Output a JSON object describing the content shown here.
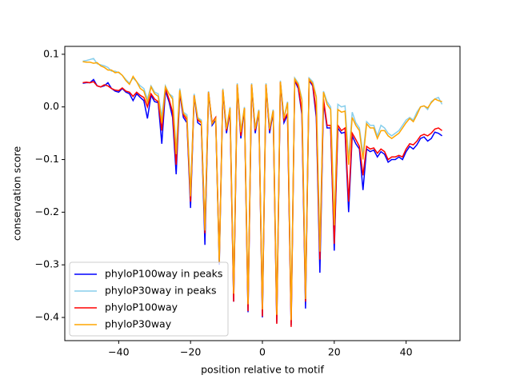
{
  "chart_data": {
    "type": "line",
    "xlabel": "position relative to motif",
    "ylabel": "conservation score",
    "x": [
      -50,
      -49,
      -48,
      -47,
      -46,
      -45,
      -44,
      -43,
      -42,
      -41,
      -40,
      -39,
      -38,
      -37,
      -36,
      -35,
      -34,
      -33,
      -32,
      -31,
      -30,
      -29,
      -28,
      -27,
      -26,
      -25,
      -24,
      -23,
      -22,
      -21,
      -20,
      -19,
      -18,
      -17,
      -16,
      -15,
      -14,
      -13,
      -12,
      -11,
      -10,
      -9,
      -8,
      -7,
      -6,
      -5,
      -4,
      -3,
      -2,
      -1,
      0,
      1,
      2,
      3,
      4,
      5,
      6,
      7,
      8,
      9,
      10,
      11,
      12,
      13,
      14,
      15,
      16,
      17,
      18,
      19,
      20,
      21,
      22,
      23,
      24,
      25,
      26,
      27,
      28,
      29,
      30,
      31,
      32,
      33,
      34,
      35,
      36,
      37,
      38,
      39,
      40,
      41,
      42,
      43,
      44,
      45,
      46,
      47,
      48,
      49,
      50
    ],
    "series": [
      {
        "name": "phyloP100way in peaks",
        "color": "#0000ff",
        "values": [
          0.045,
          0.046,
          0.046,
          0.052,
          0.04,
          0.038,
          0.04,
          0.046,
          0.035,
          0.03,
          0.028,
          0.035,
          0.028,
          0.025,
          0.012,
          0.025,
          0.018,
          0.012,
          -0.022,
          0.022,
          0.01,
          0.008,
          -0.07,
          0.03,
          0.01,
          -0.02,
          -0.128,
          0.025,
          -0.02,
          -0.03,
          -0.192,
          0.02,
          -0.03,
          -0.035,
          -0.262,
          0.025,
          -0.035,
          -0.025,
          -0.3,
          0.03,
          -0.05,
          -0.01,
          -0.37,
          0.04,
          -0.06,
          -0.005,
          -0.39,
          0.04,
          -0.05,
          -0.01,
          -0.4,
          0.04,
          -0.05,
          -0.01,
          -0.41,
          0.045,
          -0.03,
          -0.015,
          -0.415,
          0.05,
          0.035,
          -0.015,
          -0.383,
          0.05,
          0.04,
          -0.02,
          -0.315,
          0.01,
          -0.04,
          -0.04,
          -0.273,
          -0.04,
          -0.05,
          -0.048,
          -0.2,
          -0.055,
          -0.07,
          -0.08,
          -0.158,
          -0.08,
          -0.085,
          -0.082,
          -0.095,
          -0.085,
          -0.09,
          -0.105,
          -0.1,
          -0.1,
          -0.095,
          -0.1,
          -0.085,
          -0.075,
          -0.08,
          -0.072,
          -0.06,
          -0.057,
          -0.065,
          -0.06,
          -0.048,
          -0.05,
          -0.055
        ]
      },
      {
        "name": "phyloP30way in peaks",
        "color": "#87ceeb",
        "values": [
          0.087,
          0.088,
          0.09,
          0.092,
          0.082,
          0.08,
          0.078,
          0.075,
          0.068,
          0.068,
          0.065,
          0.06,
          0.052,
          0.045,
          0.055,
          0.048,
          0.04,
          0.035,
          0.015,
          0.04,
          0.028,
          0.025,
          -0.02,
          0.04,
          0.025,
          0.02,
          -0.08,
          0.035,
          -0.01,
          -0.015,
          -0.165,
          0.025,
          -0.02,
          -0.025,
          -0.23,
          0.03,
          -0.03,
          -0.02,
          -0.29,
          0.035,
          -0.04,
          0.0,
          -0.35,
          0.045,
          -0.045,
          0.0,
          -0.37,
          0.045,
          -0.04,
          -0.005,
          -0.38,
          0.045,
          -0.04,
          -0.005,
          -0.39,
          0.05,
          -0.02,
          0.01,
          -0.4,
          0.055,
          0.045,
          0.015,
          -0.36,
          0.055,
          0.048,
          0.02,
          -0.27,
          0.03,
          0.01,
          0.0,
          -0.22,
          0.005,
          0.0,
          0.002,
          -0.1,
          -0.01,
          -0.03,
          -0.04,
          -0.09,
          -0.028,
          -0.035,
          -0.035,
          -0.055,
          -0.035,
          -0.04,
          -0.05,
          -0.055,
          -0.05,
          -0.045,
          -0.035,
          -0.025,
          -0.02,
          -0.025,
          -0.01,
          0.0,
          0.002,
          -0.005,
          0.01,
          0.015,
          0.018,
          0.005
        ]
      },
      {
        "name": "phyloP100way",
        "color": "#ff0000",
        "values": [
          0.046,
          0.047,
          0.046,
          0.048,
          0.04,
          0.038,
          0.042,
          0.04,
          0.035,
          0.032,
          0.031,
          0.036,
          0.03,
          0.028,
          0.02,
          0.028,
          0.022,
          0.018,
          0.0,
          0.025,
          0.015,
          0.01,
          -0.045,
          0.035,
          0.015,
          -0.01,
          -0.11,
          0.028,
          -0.015,
          -0.025,
          -0.18,
          0.022,
          -0.025,
          -0.03,
          -0.24,
          0.028,
          -0.03,
          -0.02,
          -0.29,
          0.032,
          -0.045,
          -0.008,
          -0.37,
          0.042,
          -0.055,
          -0.003,
          -0.388,
          0.042,
          -0.045,
          -0.008,
          -0.398,
          0.042,
          -0.045,
          -0.008,
          -0.412,
          0.047,
          -0.025,
          -0.012,
          -0.418,
          0.052,
          0.038,
          -0.01,
          -0.37,
          0.052,
          0.042,
          -0.01,
          -0.29,
          0.015,
          -0.035,
          -0.035,
          -0.26,
          -0.035,
          -0.045,
          -0.04,
          -0.18,
          -0.05,
          -0.062,
          -0.075,
          -0.13,
          -0.075,
          -0.08,
          -0.078,
          -0.088,
          -0.08,
          -0.085,
          -0.1,
          -0.095,
          -0.095,
          -0.092,
          -0.095,
          -0.08,
          -0.07,
          -0.072,
          -0.065,
          -0.055,
          -0.052,
          -0.055,
          -0.05,
          -0.042,
          -0.04,
          -0.045
        ]
      },
      {
        "name": "phyloP30way",
        "color": "#ffa500",
        "values": [
          0.086,
          0.085,
          0.085,
          0.083,
          0.084,
          0.078,
          0.075,
          0.07,
          0.07,
          0.065,
          0.066,
          0.06,
          0.05,
          0.043,
          0.058,
          0.048,
          0.035,
          0.03,
          0.008,
          0.038,
          0.025,
          0.02,
          -0.03,
          0.038,
          0.025,
          0.015,
          -0.09,
          0.032,
          -0.012,
          -0.02,
          -0.17,
          0.022,
          -0.022,
          -0.028,
          -0.235,
          0.028,
          -0.032,
          -0.022,
          -0.295,
          0.033,
          -0.042,
          -0.002,
          -0.355,
          0.043,
          -0.048,
          -0.002,
          -0.375,
          0.043,
          -0.042,
          -0.007,
          -0.385,
          0.043,
          -0.042,
          -0.007,
          -0.395,
          0.048,
          -0.022,
          0.008,
          -0.405,
          0.053,
          0.043,
          0.012,
          -0.365,
          0.053,
          0.045,
          0.018,
          -0.275,
          0.028,
          0.005,
          -0.005,
          -0.225,
          -0.005,
          -0.01,
          -0.008,
          -0.11,
          -0.02,
          -0.035,
          -0.045,
          -0.1,
          -0.032,
          -0.04,
          -0.04,
          -0.06,
          -0.045,
          -0.045,
          -0.055,
          -0.06,
          -0.055,
          -0.05,
          -0.04,
          -0.03,
          -0.022,
          -0.028,
          -0.015,
          0.0,
          0.002,
          -0.002,
          0.008,
          0.015,
          0.012,
          0.01
        ]
      }
    ],
    "xlim": [
      -55,
      55
    ],
    "ylim": [
      -0.444,
      0.115
    ],
    "xticks": [
      {
        "value": -40,
        "label": "−40"
      },
      {
        "value": -20,
        "label": "−20"
      },
      0,
      20,
      40
    ],
    "yticks": [
      0.1,
      {
        "value": 0,
        "label": "0.0"
      },
      {
        "value": -0.1,
        "label": "−0.1"
      },
      {
        "value": -0.2,
        "label": "−0.2"
      },
      {
        "value": -0.3,
        "label": "−0.3"
      },
      {
        "value": -0.4,
        "label": "−0.4"
      }
    ],
    "legend": "lower left"
  }
}
